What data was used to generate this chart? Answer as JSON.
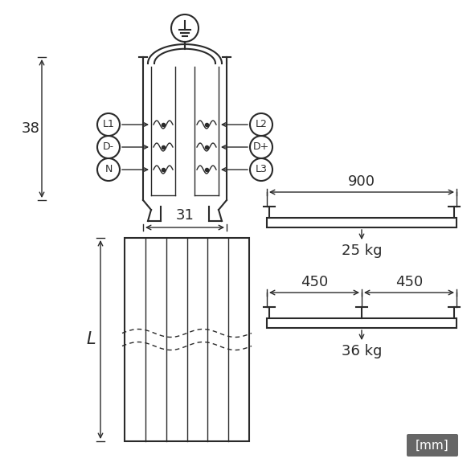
{
  "bg_color": "#ffffff",
  "line_color": "#2a2a2a",
  "mm_box_color": "#666666",
  "mm_text_color": "#ffffff",
  "labels_left": [
    "L1",
    "D-",
    "N"
  ],
  "labels_right": [
    "L2",
    "D+",
    "L3"
  ],
  "dim_38": "38",
  "dim_31": "31",
  "dim_L": "L",
  "dim_900": "900",
  "dim_450a": "450",
  "dim_450b": "450",
  "weight_1": "25 kg",
  "weight_2": "36 kg",
  "mm_label": "[mm]"
}
